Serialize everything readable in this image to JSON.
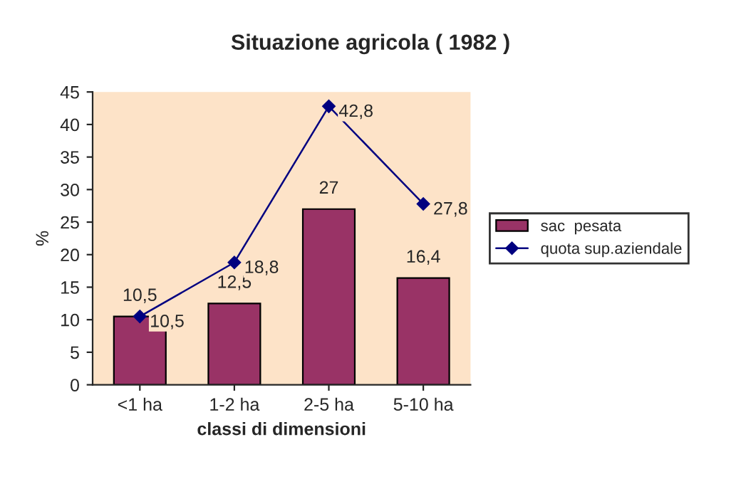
{
  "chart_data": {
    "type": "bar",
    "title": "Situazione agricola ( 1982 )",
    "xlabel": "classi di dimensioni",
    "ylabel": "%",
    "categories": [
      "<1 ha",
      "1-2 ha",
      "2-5 ha",
      "5-10 ha"
    ],
    "series": [
      {
        "name": "sac  pesata",
        "color": "#993366",
        "values": [
          10.5,
          12.5,
          27,
          16.4
        ],
        "value_labels": [
          "10,5",
          "12,5",
          "27",
          "16,4"
        ]
      },
      {
        "name": "quota sup.aziendale",
        "type": "line",
        "color": "#000080",
        "marker": "diamond",
        "line_style": "solid",
        "values": [
          10.5,
          18.8,
          42.8,
          27.8
        ],
        "value_labels": [
          "10,5",
          "18,8",
          "42,8",
          "27,8"
        ]
      }
    ],
    "ylim": [
      0,
      45
    ],
    "yticks": [
      0,
      5,
      10,
      15,
      20,
      25,
      30,
      35,
      40,
      45
    ],
    "grid": false,
    "legend": "right"
  }
}
